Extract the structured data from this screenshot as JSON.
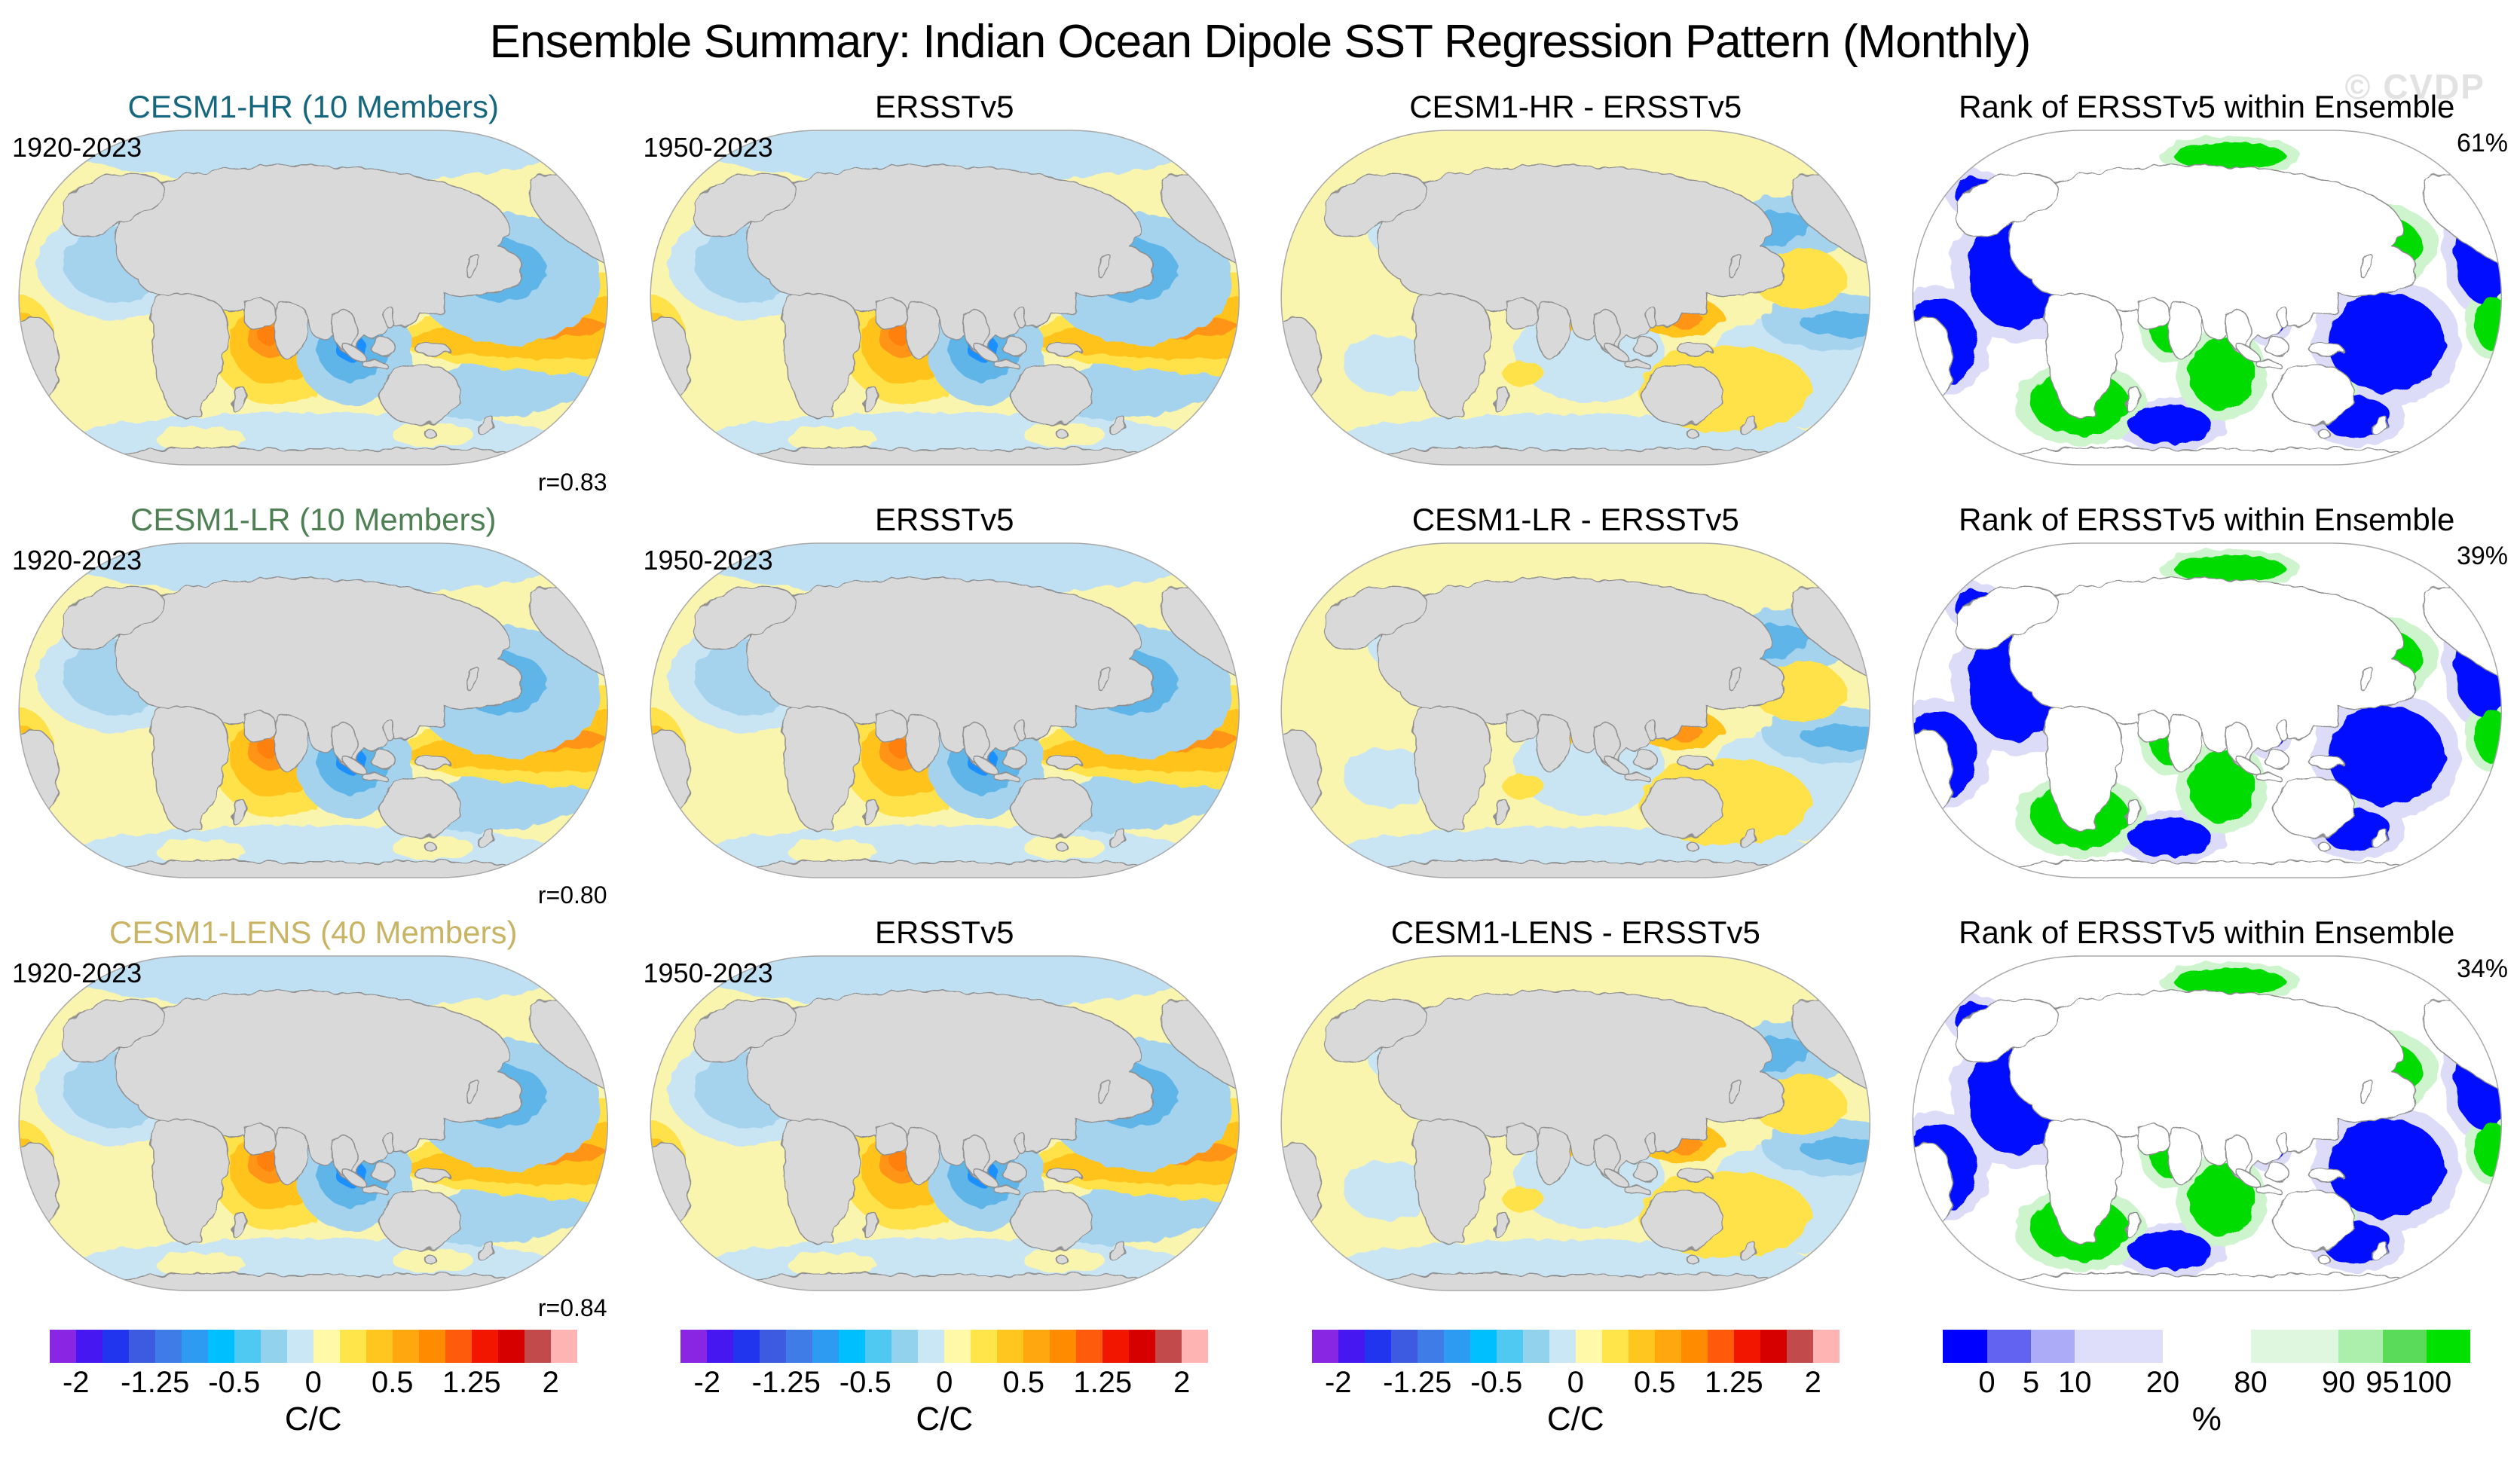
{
  "header": {
    "title": "Ensemble Summary: Indian Ocean Dipole SST Regression Pattern (Monthly)",
    "watermark": "© CVDP"
  },
  "palette": {
    "model_hr_title": "#15677F",
    "model_lr_title": "#4E8054",
    "model_lens_title": "#C8B464",
    "land": "#D9D9D9",
    "coastline": "#8E8E8E",
    "ocean_positive_core": "#FF9415",
    "ocean_negative_core": "#1E8FFF",
    "rank_low_blue": "#0008FF",
    "rank_high_green": "#00DC00"
  },
  "panels": [
    {
      "title": "CESM1-HR (10 Members)",
      "title_color": "#15677F",
      "date_range": "1920-2023",
      "r_label": "r=0.83",
      "map": "regression"
    },
    {
      "title": "ERSSTv5",
      "title_color": "#000000",
      "date_range": "1950-2023",
      "map": "regression"
    },
    {
      "title": "CESM1-HR - ERSSTv5",
      "title_color": "#000000",
      "map": "difference"
    },
    {
      "title": "Rank of ERSSTv5 within Ensemble",
      "title_color": "#000000",
      "percent_label": "61%",
      "map": "rank"
    },
    {
      "title": "CESM1-LR (10 Members)",
      "title_color": "#4E8054",
      "date_range": "1920-2023",
      "r_label": "r=0.80",
      "map": "regression"
    },
    {
      "title": "ERSSTv5",
      "title_color": "#000000",
      "date_range": "1950-2023",
      "map": "regression"
    },
    {
      "title": "CESM1-LR - ERSSTv5",
      "title_color": "#000000",
      "map": "difference"
    },
    {
      "title": "Rank of ERSSTv5 within Ensemble",
      "title_color": "#000000",
      "percent_label": "39%",
      "map": "rank"
    },
    {
      "title": "CESM1-LENS (40 Members)",
      "title_color": "#C8B464",
      "date_range": "1920-2023",
      "r_label": "r=0.84",
      "map": "regression"
    },
    {
      "title": "ERSSTv5",
      "title_color": "#000000",
      "date_range": "1950-2023",
      "map": "regression"
    },
    {
      "title": "CESM1-LENS - ERSSTv5",
      "title_color": "#000000",
      "map": "difference"
    },
    {
      "title": "Rank of ERSSTv5 within Ensemble",
      "title_color": "#000000",
      "percent_label": "34%",
      "map": "rank"
    }
  ],
  "colorbars": {
    "regression": {
      "unit": "C/C",
      "segments": [
        {
          "color": "#8926E3",
          "width": 1
        },
        {
          "color": "#4717F2",
          "width": 1
        },
        {
          "color": "#2134EE",
          "width": 1
        },
        {
          "color": "#3D5BE0",
          "width": 1
        },
        {
          "color": "#3F7CE8",
          "width": 1
        },
        {
          "color": "#2D9BF2",
          "width": 1
        },
        {
          "color": "#00BFFF",
          "width": 1
        },
        {
          "color": "#4FC8F2",
          "width": 1
        },
        {
          "color": "#93D2EC",
          "width": 1
        },
        {
          "color": "#C9E7F5",
          "width": 1
        },
        {
          "color": "#FFF9A8",
          "width": 1
        },
        {
          "color": "#FFE54A",
          "width": 1
        },
        {
          "color": "#FFC61F",
          "width": 1
        },
        {
          "color": "#FFA70E",
          "width": 1
        },
        {
          "color": "#FF8C00",
          "width": 1
        },
        {
          "color": "#FF5B0C",
          "width": 1
        },
        {
          "color": "#F21500",
          "width": 1
        },
        {
          "color": "#D60000",
          "width": 1
        },
        {
          "color": "#C34A4A",
          "width": 1
        },
        {
          "color": "#FFB4B4",
          "width": 1
        }
      ],
      "ticks": [
        {
          "label": "-2",
          "pos": 5
        },
        {
          "label": "-1.25",
          "pos": 20
        },
        {
          "label": "-0.5",
          "pos": 35
        },
        {
          "label": "0",
          "pos": 50
        },
        {
          "label": "0.5",
          "pos": 65
        },
        {
          "label": "1.25",
          "pos": 80
        },
        {
          "label": "2",
          "pos": 95
        }
      ]
    },
    "rank": {
      "unit": "%",
      "segments": [
        {
          "color": "#0000FF",
          "width": 1
        },
        {
          "color": "#6363F2",
          "width": 1
        },
        {
          "color": "#ABABF7",
          "width": 1
        },
        {
          "color": "#DEDEFB",
          "width": 2
        },
        {
          "color": "#FFFFFF",
          "width": 2
        },
        {
          "color": "#DFF7DF",
          "width": 2
        },
        {
          "color": "#ACEFAC",
          "width": 1
        },
        {
          "color": "#5ADC5A",
          "width": 1
        },
        {
          "color": "#00E100",
          "width": 1
        }
      ],
      "ticks": [
        {
          "label": "0",
          "pos": 8.33
        },
        {
          "label": "5",
          "pos": 16.67
        },
        {
          "label": "10",
          "pos": 25
        },
        {
          "label": "20",
          "pos": 41.67
        },
        {
          "label": "80",
          "pos": 58.33
        },
        {
          "label": "90",
          "pos": 75
        },
        {
          "label": "95",
          "pos": 83.33
        },
        {
          "label": "100",
          "pos": 91.67
        }
      ]
    }
  },
  "chart_data": {
    "type": "heatmap",
    "title": "Ensemble Summary: Indian Ocean Dipole SST Regression Pattern (Monthly)",
    "grid": {
      "rows": 3,
      "cols": 4
    },
    "panels": [
      {
        "row": 1,
        "col": 1,
        "title": "CESM1-HR (10 Members)",
        "period": "1920-2023",
        "pattern_correlation_r": 0.83,
        "units": "C/C",
        "scale_ticks": [
          -2,
          -1.25,
          -0.5,
          0,
          0.5,
          1.25,
          2
        ]
      },
      {
        "row": 1,
        "col": 2,
        "title": "ERSSTv5",
        "period": "1950-2023",
        "units": "C/C",
        "scale_ticks": [
          -2,
          -1.25,
          -0.5,
          0,
          0.5,
          1.25,
          2
        ]
      },
      {
        "row": 1,
        "col": 3,
        "title": "CESM1-HR - ERSSTv5",
        "units": "C/C",
        "scale_ticks": [
          -2,
          -1.25,
          -0.5,
          0,
          0.5,
          1.25,
          2
        ]
      },
      {
        "row": 1,
        "col": 4,
        "title": "Rank of ERSSTv5 within Ensemble",
        "rank_pct": 61,
        "units": "%",
        "scale_ticks": [
          0,
          5,
          10,
          20,
          80,
          90,
          95,
          100
        ]
      },
      {
        "row": 2,
        "col": 1,
        "title": "CESM1-LR (10 Members)",
        "period": "1920-2023",
        "pattern_correlation_r": 0.8,
        "units": "C/C",
        "scale_ticks": [
          -2,
          -1.25,
          -0.5,
          0,
          0.5,
          1.25,
          2
        ]
      },
      {
        "row": 2,
        "col": 2,
        "title": "ERSSTv5",
        "period": "1950-2023",
        "units": "C/C",
        "scale_ticks": [
          -2,
          -1.25,
          -0.5,
          0,
          0.5,
          1.25,
          2
        ]
      },
      {
        "row": 2,
        "col": 3,
        "title": "CESM1-LR - ERSSTv5",
        "units": "C/C",
        "scale_ticks": [
          -2,
          -1.25,
          -0.5,
          0,
          0.5,
          1.25,
          2
        ]
      },
      {
        "row": 2,
        "col": 4,
        "title": "Rank of ERSSTv5 within Ensemble",
        "rank_pct": 39,
        "units": "%",
        "scale_ticks": [
          0,
          5,
          10,
          20,
          80,
          90,
          95,
          100
        ]
      },
      {
        "row": 3,
        "col": 1,
        "title": "CESM1-LENS (40 Members)",
        "period": "1920-2023",
        "pattern_correlation_r": 0.84,
        "units": "C/C",
        "scale_ticks": [
          -2,
          -1.25,
          -0.5,
          0,
          0.5,
          1.25,
          2
        ]
      },
      {
        "row": 3,
        "col": 2,
        "title": "ERSSTv5",
        "period": "1950-2023",
        "units": "C/C",
        "scale_ticks": [
          -2,
          -1.25,
          -0.5,
          0,
          0.5,
          1.25,
          2
        ]
      },
      {
        "row": 3,
        "col": 3,
        "title": "CESM1-LENS - ERSSTv5",
        "units": "C/C",
        "scale_ticks": [
          -2,
          -1.25,
          -0.5,
          0,
          0.5,
          1.25,
          2
        ]
      },
      {
        "row": 3,
        "col": 4,
        "title": "Rank of ERSSTv5 within Ensemble",
        "rank_pct": 34,
        "units": "%",
        "scale_ticks": [
          0,
          5,
          10,
          20,
          80,
          90,
          95,
          100
        ]
      }
    ]
  }
}
